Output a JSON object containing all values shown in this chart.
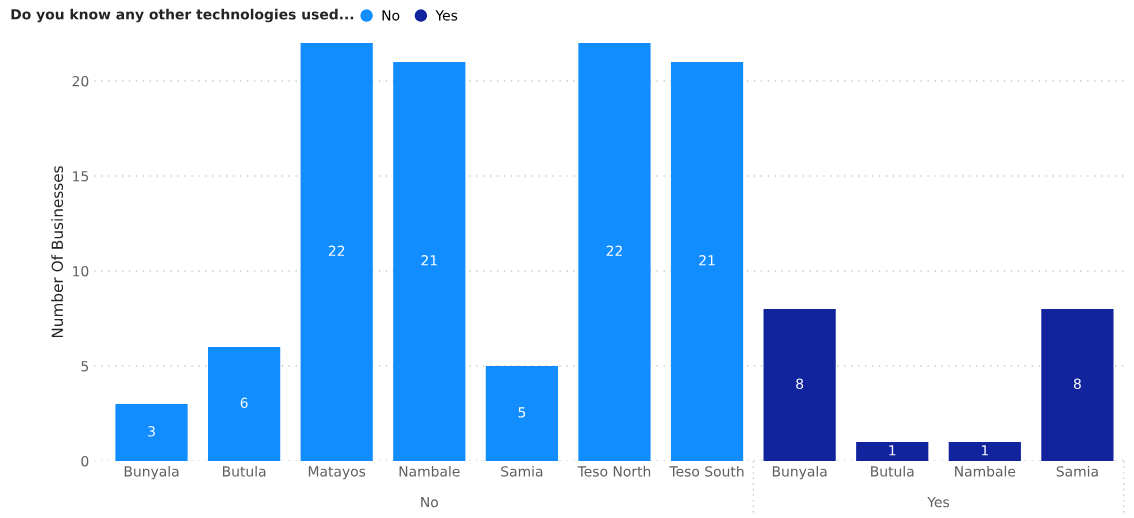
{
  "chart_data": {
    "type": "bar",
    "legend_title": "Do you know any other technologies used...",
    "ylabel": "Number Of Businesses",
    "categories": [
      "Bunyala",
      "Butula",
      "Matayos",
      "Nambale",
      "Samia",
      "Teso North",
      "Teso South",
      "Bunyala",
      "Butula",
      "Nambale",
      "Samia"
    ],
    "series": [
      {
        "name": "No",
        "color": "#118dff",
        "values": [
          3,
          6,
          22,
          21,
          5,
          22,
          21,
          null,
          null,
          null,
          null
        ]
      },
      {
        "name": "Yes",
        "color": "#12239e",
        "values": [
          null,
          null,
          null,
          null,
          null,
          null,
          null,
          8,
          1,
          1,
          8
        ]
      }
    ],
    "annotations": [
      "No",
      "Yes"
    ],
    "ylim": [
      0,
      22
    ],
    "yticks": [
      0,
      5,
      10,
      15,
      20
    ],
    "grid": "y",
    "legend": "top left",
    "data_labels": true
  }
}
